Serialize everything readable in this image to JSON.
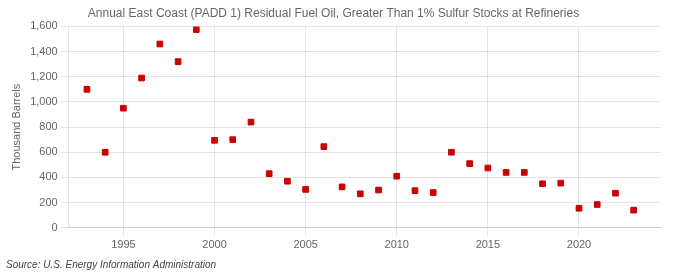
{
  "chart_data": {
    "type": "scatter",
    "title": "Annual East Coast (PADD 1) Residual Fuel Oil, Greater Than 1% Sulfur Stocks at Refineries",
    "ylabel": "Thousand Barrels",
    "source": "Source: U.S. Energy Information Administration",
    "x": [
      1993,
      1994,
      1995,
      1996,
      1997,
      1998,
      1999,
      2000,
      2001,
      2002,
      2003,
      2004,
      2005,
      2006,
      2007,
      2008,
      2009,
      2010,
      2011,
      2012,
      2013,
      2014,
      2015,
      2016,
      2017,
      2018,
      2019,
      2020,
      2021,
      2022,
      2023
    ],
    "values": [
      1100,
      600,
      950,
      1190,
      1460,
      1320,
      1575,
      695,
      700,
      840,
      430,
      370,
      305,
      645,
      325,
      270,
      300,
      410,
      295,
      280,
      600,
      510,
      475,
      440,
      440,
      350,
      355,
      155,
      185,
      275,
      140
    ],
    "color": "#cc0000",
    "marker": "square",
    "xlim": [
      1992.0,
      2024.5
    ],
    "xticks": [
      1995,
      2000,
      2005,
      2010,
      2015,
      2020
    ],
    "ylim": [
      0,
      1600
    ],
    "yticks": [
      0,
      200,
      400,
      600,
      800,
      {
        "value": 1000,
        "label": "1,000"
      },
      {
        "value": 1200,
        "label": "1,200"
      },
      {
        "value": 1400,
        "label": "1,400"
      },
      {
        "value": 1600,
        "label": "1,600"
      }
    ],
    "grid": true
  }
}
